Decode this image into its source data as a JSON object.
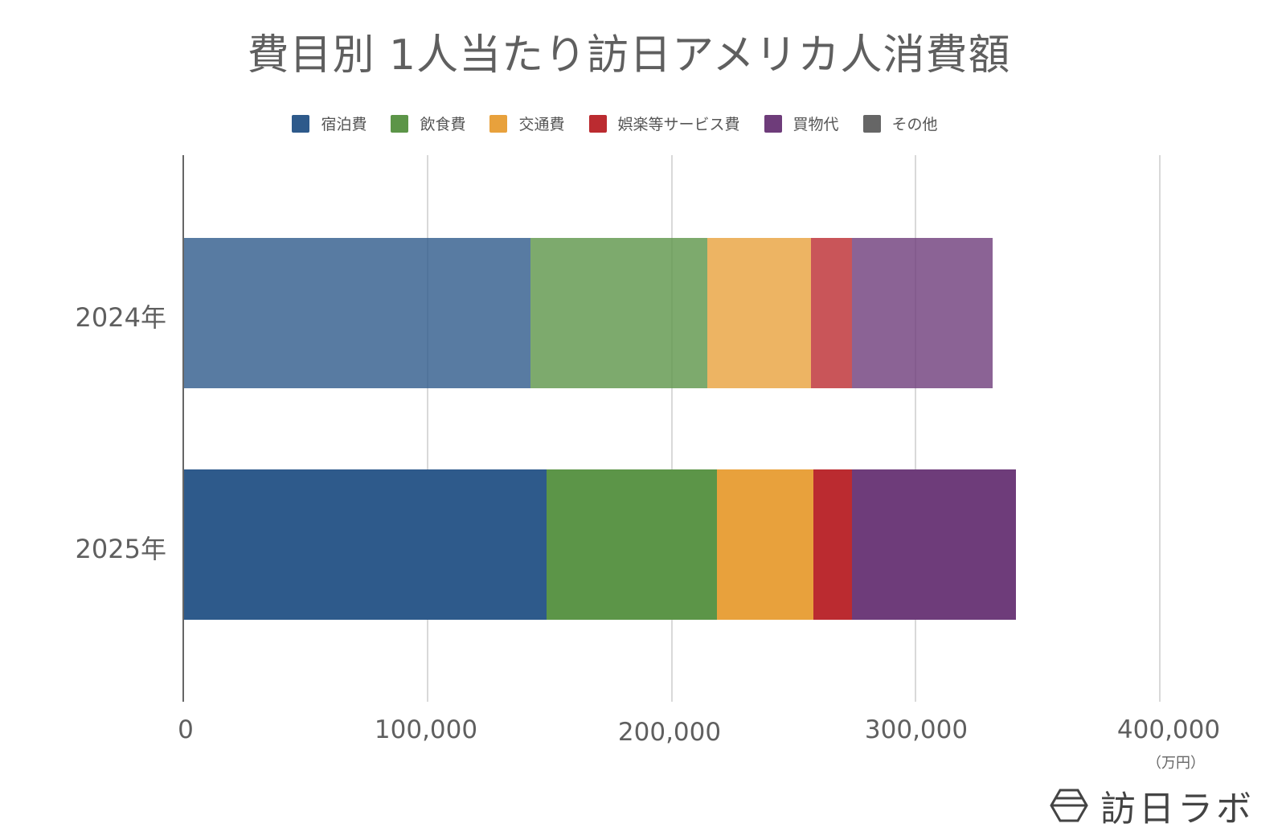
{
  "title": "費目別 1人当たり訪日アメリカ人消費額",
  "legend": [
    {
      "label": "宿泊費",
      "color": "#2e5a8b"
    },
    {
      "label": "飲食費",
      "color": "#5c9548"
    },
    {
      "label": "交通費",
      "color": "#e8a13c"
    },
    {
      "label": "娯楽等サービス費",
      "color": "#bb2b30"
    },
    {
      "label": "買物代",
      "color": "#6e3c7a"
    },
    {
      "label": "その他",
      "color": "#666666"
    }
  ],
  "y_labels": [
    "2024年",
    "2025年"
  ],
  "x_ticks": [
    "0",
    "100,000",
    "200,000",
    "300,000",
    "400,000"
  ],
  "unit_label": "（万円）",
  "logo_text": "訪日ラボ",
  "chart_data": {
    "type": "bar",
    "orientation": "horizontal",
    "stacked": true,
    "title": "費目別 1人当たり訪日アメリカ人消費額",
    "categories": [
      "2024年",
      "2025年"
    ],
    "series": [
      {
        "name": "宿泊費",
        "color": "#2e5a8b",
        "values": [
          142200,
          148800
        ]
      },
      {
        "name": "飲食費",
        "color": "#5c9548",
        "values": [
          72400,
          69800
        ]
      },
      {
        "name": "交通費",
        "color": "#e8a13c",
        "values": [
          42500,
          39500
        ]
      },
      {
        "name": "娯楽等サービス費",
        "color": "#bb2b30",
        "values": [
          16800,
          15800
        ]
      },
      {
        "name": "買物代",
        "color": "#6e3c7a",
        "values": [
          57600,
          67200
        ]
      },
      {
        "name": "その他",
        "color": "#666666",
        "values": [
          0,
          0
        ]
      }
    ],
    "totals": [
      331500,
      341100
    ],
    "xlabel": "（万円）",
    "ylabel": "",
    "xlim": [
      0,
      400000
    ],
    "x_ticks": [
      0,
      100000,
      200000,
      300000,
      400000
    ],
    "grid": true,
    "legend_position": "top"
  }
}
